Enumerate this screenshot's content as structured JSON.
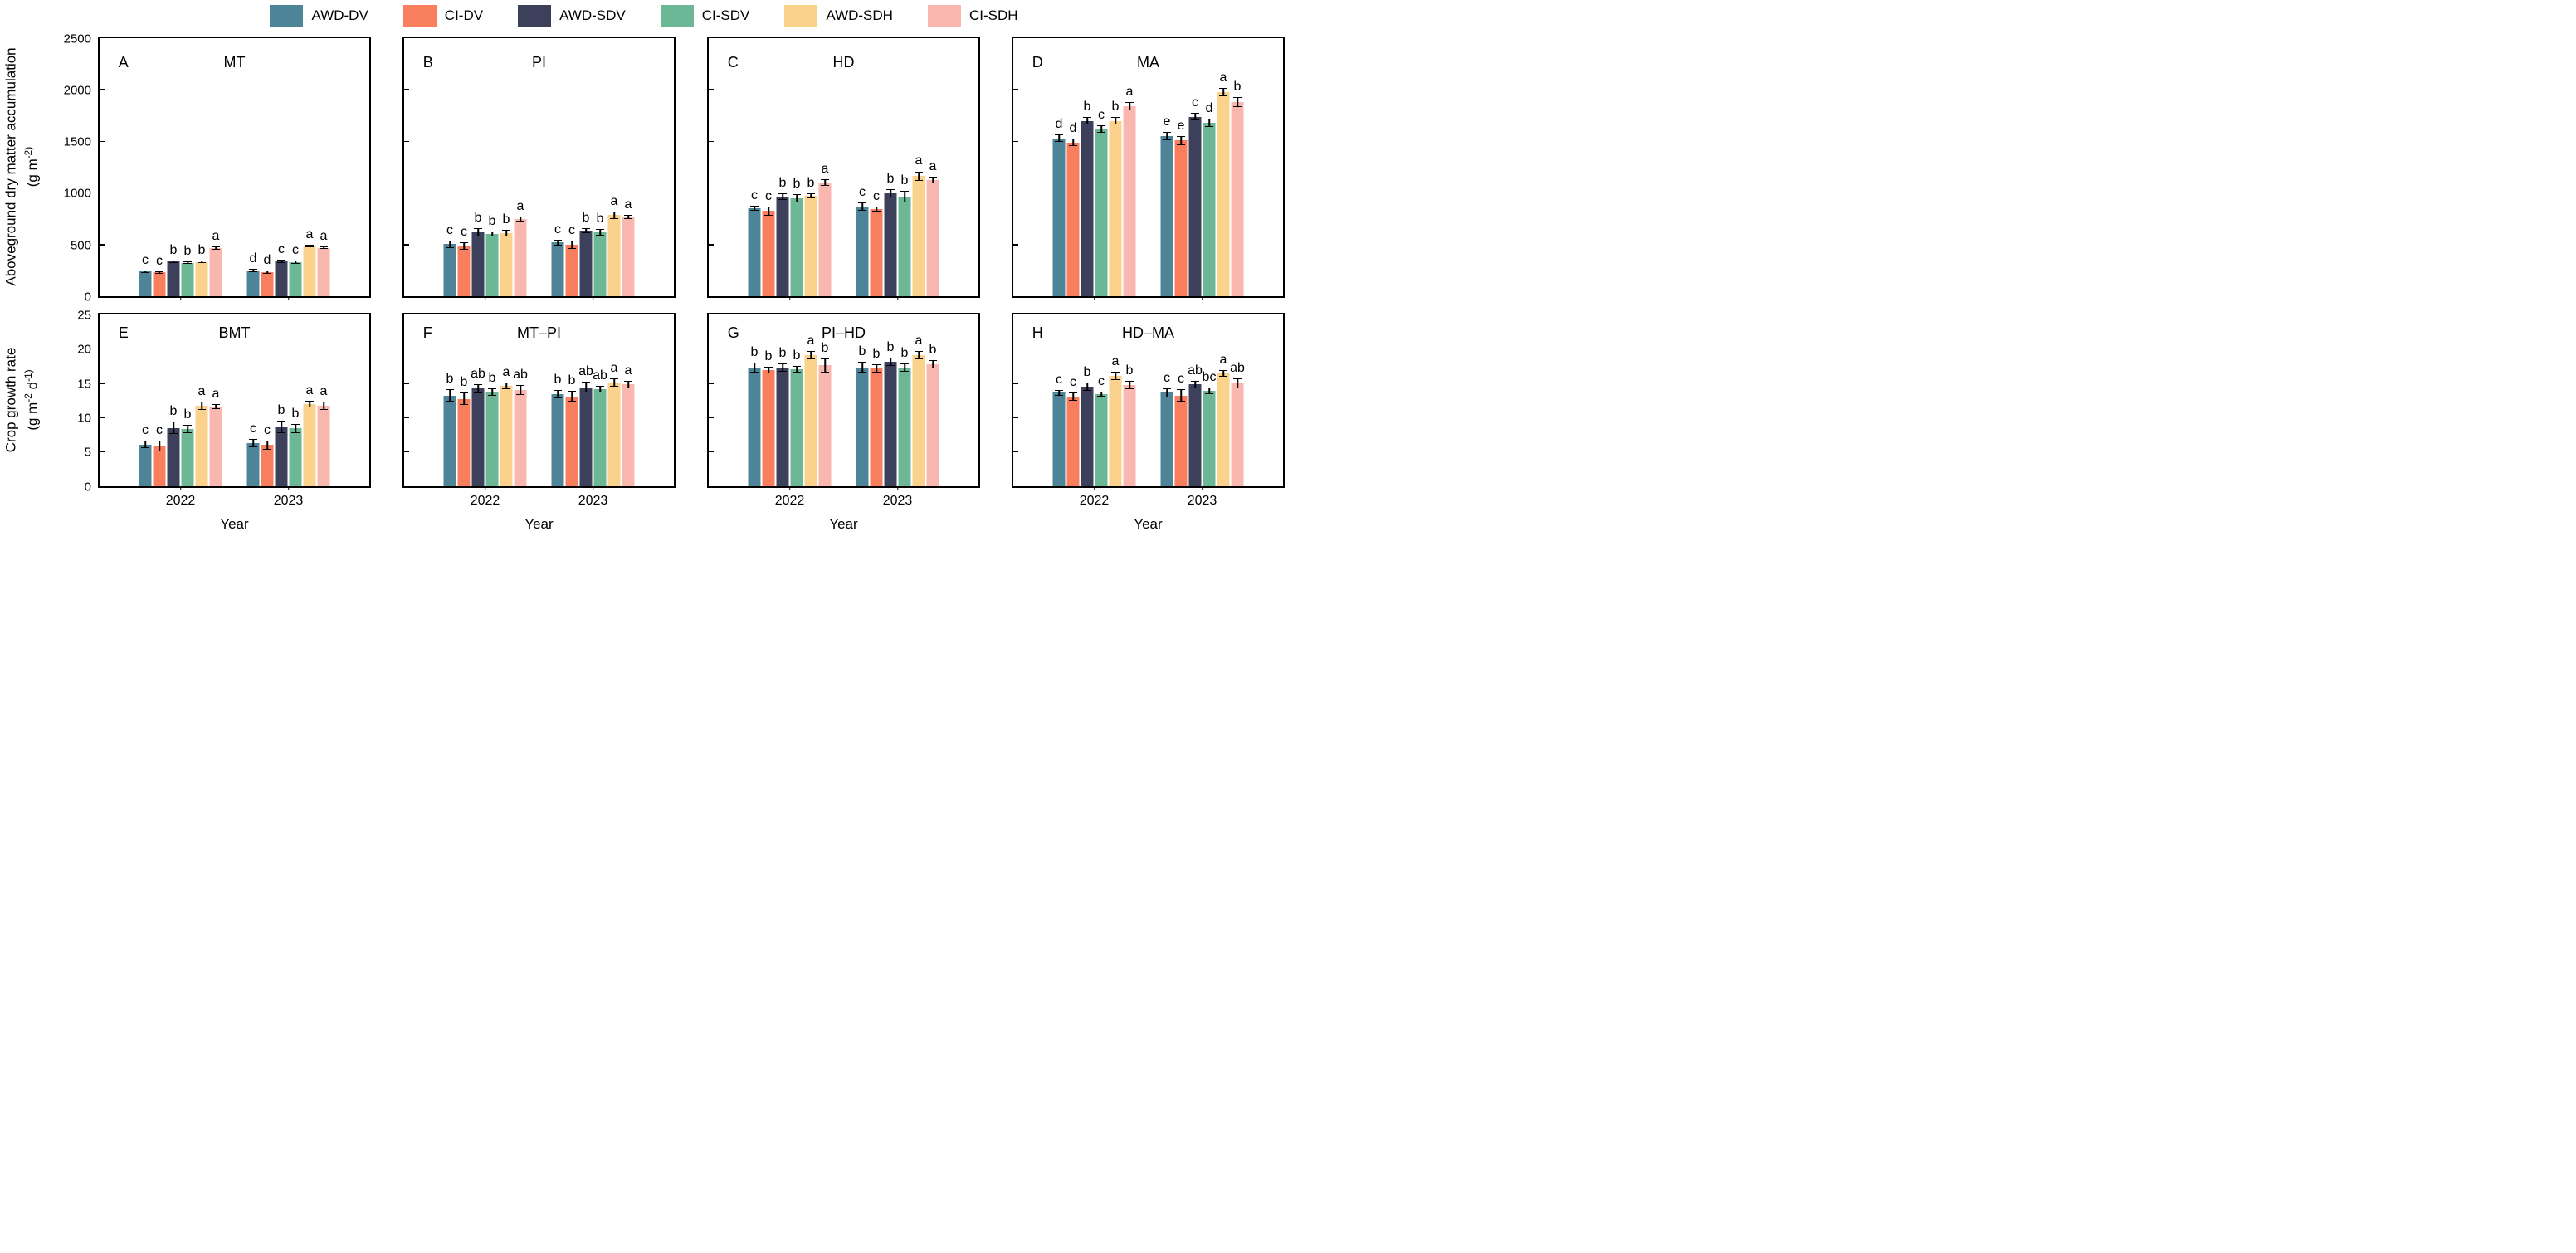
{
  "figure": {
    "x_axis_title": "Year",
    "row1_y_title": "Aboveground dry matter accumulation",
    "row1_y_units": "(g m^-2)",
    "row2_y_title": "Crop growth rate",
    "row2_y_units": "(g m^-2 d^-1)"
  },
  "legend": [
    {
      "label": "AWD-DV",
      "color": "#4D8498"
    },
    {
      "label": "CI-DV",
      "color": "#F97E5D"
    },
    {
      "label": "AWD-SDV",
      "color": "#3D405A"
    },
    {
      "label": "CI-SDV",
      "color": "#6CB795"
    },
    {
      "label": "AWD-SDH",
      "color": "#FBD28C"
    },
    {
      "label": "CI-SDH",
      "color": "#FAB7AF"
    }
  ],
  "chart_data": {
    "type": "bar",
    "categories": [
      "2022",
      "2023"
    ],
    "series_names": [
      "AWD-DV",
      "CI-DV",
      "AWD-SDV",
      "CI-SDV",
      "AWD-SDH",
      "CI-SDH"
    ],
    "grid": false,
    "legend_position": "top-center",
    "error_bars": true,
    "panels": [
      {
        "id": "A",
        "title": "MT",
        "row": 1,
        "ylim": [
          0,
          2500
        ],
        "yticks": [
          0,
          500,
          1000,
          1500,
          2000,
          2500
        ],
        "show_ytick_labels": true,
        "show_xtick_labels": false,
        "series": [
          {
            "name": "AWD-DV",
            "values": [
              240,
              250
            ],
            "errors": [
              12,
              15
            ],
            "letters": [
              "c",
              "d"
            ]
          },
          {
            "name": "CI-DV",
            "values": [
              230,
              235
            ],
            "errors": [
              15,
              15
            ],
            "letters": [
              "c",
              "d"
            ]
          },
          {
            "name": "AWD-SDV",
            "values": [
              335,
              340
            ],
            "errors": [
              12,
              15
            ],
            "letters": [
              "b",
              "c"
            ]
          },
          {
            "name": "CI-SDV",
            "values": [
              325,
              330
            ],
            "errors": [
              12,
              15
            ],
            "letters": [
              "b",
              "c"
            ]
          },
          {
            "name": "AWD-SDH",
            "values": [
              330,
              483
            ],
            "errors": [
              12,
              12
            ],
            "letters": [
              "b",
              "a"
            ]
          },
          {
            "name": "CI-SDH",
            "values": [
              465,
              470
            ],
            "errors": [
              14,
              14
            ],
            "letters": [
              "a",
              "a"
            ]
          }
        ]
      },
      {
        "id": "B",
        "title": "PI",
        "row": 1,
        "ylim": [
          0,
          2500
        ],
        "yticks": [
          0,
          500,
          1000,
          1500,
          2000,
          2500
        ],
        "show_ytick_labels": false,
        "show_xtick_labels": false,
        "series": [
          {
            "name": "AWD-DV",
            "values": [
              505,
              520
            ],
            "errors": [
              35,
              30
            ],
            "letters": [
              "c",
              "c"
            ]
          },
          {
            "name": "CI-DV",
            "values": [
              485,
              500
            ],
            "errors": [
              35,
              40
            ],
            "letters": [
              "c",
              "c"
            ]
          },
          {
            "name": "AWD-SDV",
            "values": [
              620,
              635
            ],
            "errors": [
              40,
              25
            ],
            "letters": [
              "b",
              "b"
            ]
          },
          {
            "name": "CI-SDV",
            "values": [
              600,
              620
            ],
            "errors": [
              25,
              35
            ],
            "letters": [
              "b",
              "b"
            ]
          },
          {
            "name": "AWD-SDH",
            "values": [
              610,
              785
            ],
            "errors": [
              35,
              35
            ],
            "letters": [
              "b",
              "a"
            ]
          },
          {
            "name": "CI-SDH",
            "values": [
              745,
              765
            ],
            "errors": [
              25,
              20
            ],
            "letters": [
              "a",
              "a"
            ]
          }
        ]
      },
      {
        "id": "C",
        "title": "HD",
        "row": 1,
        "ylim": [
          0,
          2500
        ],
        "yticks": [
          0,
          500,
          1000,
          1500,
          2000,
          2500
        ],
        "show_ytick_labels": false,
        "show_xtick_labels": false,
        "series": [
          {
            "name": "AWD-DV",
            "values": [
              850,
              870
            ],
            "errors": [
              25,
              40
            ],
            "letters": [
              "c",
              "c"
            ]
          },
          {
            "name": "CI-DV",
            "values": [
              825,
              845
            ],
            "errors": [
              45,
              25
            ],
            "letters": [
              "c",
              "c"
            ]
          },
          {
            "name": "AWD-SDV",
            "values": [
              965,
              1000
            ],
            "errors": [
              30,
              40
            ],
            "letters": [
              "b",
              "b"
            ]
          },
          {
            "name": "CI-SDV",
            "values": [
              945,
              965
            ],
            "errors": [
              40,
              55
            ],
            "letters": [
              "b",
              "b"
            ]
          },
          {
            "name": "AWD-SDH",
            "values": [
              970,
              1165
            ],
            "errors": [
              25,
              45
            ],
            "letters": [
              "b",
              "a"
            ]
          },
          {
            "name": "CI-SDH",
            "values": [
              1100,
              1125
            ],
            "errors": [
              30,
              35
            ],
            "letters": [
              "a",
              "a"
            ]
          }
        ]
      },
      {
        "id": "D",
        "title": "MA",
        "row": 1,
        "ylim": [
          0,
          2500
        ],
        "yticks": [
          0,
          500,
          1000,
          1500,
          2000,
          2500
        ],
        "show_ytick_labels": false,
        "show_xtick_labels": false,
        "series": [
          {
            "name": "AWD-DV",
            "values": [
              1530,
              1550
            ],
            "errors": [
              35,
              40
            ],
            "letters": [
              "d",
              "e"
            ]
          },
          {
            "name": "CI-DV",
            "values": [
              1490,
              1510
            ],
            "errors": [
              35,
              45
            ],
            "letters": [
              "d",
              "e"
            ]
          },
          {
            "name": "AWD-SDV",
            "values": [
              1700,
              1740
            ],
            "errors": [
              35,
              35
            ],
            "letters": [
              "b",
              "c"
            ]
          },
          {
            "name": "CI-SDV",
            "values": [
              1620,
              1680
            ],
            "errors": [
              35,
              40
            ],
            "letters": [
              "c",
              "d"
            ]
          },
          {
            "name": "AWD-SDH",
            "values": [
              1700,
              1980
            ],
            "errors": [
              35,
              40
            ],
            "letters": [
              "b",
              "a"
            ]
          },
          {
            "name": "CI-SDH",
            "values": [
              1840,
              1880
            ],
            "errors": [
              40,
              50
            ],
            "letters": [
              "a",
              "b"
            ]
          }
        ]
      },
      {
        "id": "E",
        "title": "BMT",
        "row": 2,
        "ylim": [
          0,
          25
        ],
        "yticks": [
          0,
          5,
          10,
          15,
          20,
          25
        ],
        "show_ytick_labels": true,
        "show_xtick_labels": true,
        "series": [
          {
            "name": "AWD-DV",
            "values": [
              6.1,
              6.3
            ],
            "errors": [
              0.5,
              0.6
            ],
            "letters": [
              "c",
              "c"
            ]
          },
          {
            "name": "CI-DV",
            "values": [
              5.9,
              6.0
            ],
            "errors": [
              0.8,
              0.7
            ],
            "letters": [
              "c",
              "c"
            ]
          },
          {
            "name": "AWD-SDV",
            "values": [
              8.5,
              8.6
            ],
            "errors": [
              0.9,
              0.9
            ],
            "letters": [
              "b",
              "b"
            ]
          },
          {
            "name": "CI-SDV",
            "values": [
              8.3,
              8.4
            ],
            "errors": [
              0.6,
              0.7
            ],
            "letters": [
              "b",
              "b"
            ]
          },
          {
            "name": "AWD-SDH",
            "values": [
              11.7,
              12.0
            ],
            "errors": [
              0.6,
              0.5
            ],
            "letters": [
              "a",
              "a"
            ]
          },
          {
            "name": "CI-SDH",
            "values": [
              11.6,
              11.7
            ],
            "errors": [
              0.4,
              0.6
            ],
            "letters": [
              "a",
              "a"
            ]
          }
        ]
      },
      {
        "id": "F",
        "title": "MT–PI",
        "row": 2,
        "ylim": [
          0,
          25
        ],
        "yticks": [
          0,
          5,
          10,
          15,
          20,
          25
        ],
        "show_ytick_labels": false,
        "show_xtick_labels": true,
        "series": [
          {
            "name": "AWD-DV",
            "values": [
              13.2,
              13.4
            ],
            "errors": [
              0.9,
              0.6
            ],
            "letters": [
              "b",
              "b"
            ]
          },
          {
            "name": "CI-DV",
            "values": [
              12.7,
              13.1
            ],
            "errors": [
              0.9,
              0.8
            ],
            "letters": [
              "b",
              "b"
            ]
          },
          {
            "name": "AWD-SDV",
            "values": [
              14.2,
              14.4
            ],
            "errors": [
              0.7,
              0.8
            ],
            "letters": [
              "ab",
              "ab"
            ]
          },
          {
            "name": "CI-SDV",
            "values": [
              13.7,
              14.1
            ],
            "errors": [
              0.5,
              0.5
            ],
            "letters": [
              "b",
              "ab"
            ]
          },
          {
            "name": "AWD-SDH",
            "values": [
              14.6,
              15.1
            ],
            "errors": [
              0.5,
              0.6
            ],
            "letters": [
              "a",
              "a"
            ]
          },
          {
            "name": "CI-SDH",
            "values": [
              14.0,
              14.8
            ],
            "errors": [
              0.7,
              0.5
            ],
            "letters": [
              "ab",
              "a"
            ]
          }
        ]
      },
      {
        "id": "G",
        "title": "PI–HD",
        "row": 2,
        "ylim": [
          0,
          25
        ],
        "yticks": [
          0,
          5,
          10,
          15,
          20,
          25
        ],
        "show_ytick_labels": false,
        "show_xtick_labels": true,
        "series": [
          {
            "name": "AWD-DV",
            "values": [
              17.3,
              17.3
            ],
            "errors": [
              0.7,
              0.8
            ],
            "letters": [
              "b",
              "b"
            ]
          },
          {
            "name": "CI-DV",
            "values": [
              16.9,
              17.1
            ],
            "errors": [
              0.5,
              0.6
            ],
            "letters": [
              "b",
              "b"
            ]
          },
          {
            "name": "AWD-SDV",
            "values": [
              17.3,
              18.1
            ],
            "errors": [
              0.6,
              0.6
            ],
            "letters": [
              "b",
              "b"
            ]
          },
          {
            "name": "CI-SDV",
            "values": [
              17.0,
              17.3
            ],
            "errors": [
              0.5,
              0.6
            ],
            "letters": [
              "b",
              "b"
            ]
          },
          {
            "name": "AWD-SDH",
            "values": [
              19.1,
              19.1
            ],
            "errors": [
              0.6,
              0.6
            ],
            "letters": [
              "a",
              "a"
            ]
          },
          {
            "name": "CI-SDH",
            "values": [
              17.6,
              17.8
            ],
            "errors": [
              1.0,
              0.6
            ],
            "letters": [
              "b",
              "b"
            ]
          }
        ]
      },
      {
        "id": "H",
        "title": "HD–MA",
        "row": 2,
        "ylim": [
          0,
          25
        ],
        "yticks": [
          0,
          5,
          10,
          15,
          20,
          25
        ],
        "show_ytick_labels": false,
        "show_xtick_labels": true,
        "series": [
          {
            "name": "AWD-DV",
            "values": [
              13.6,
              13.6
            ],
            "errors": [
              0.4,
              0.7
            ],
            "letters": [
              "c",
              "c"
            ]
          },
          {
            "name": "CI-DV",
            "values": [
              13.0,
              13.2
            ],
            "errors": [
              0.6,
              0.9
            ],
            "letters": [
              "c",
              "c"
            ]
          },
          {
            "name": "AWD-SDV",
            "values": [
              14.5,
              14.8
            ],
            "errors": [
              0.6,
              0.6
            ],
            "letters": [
              "b",
              "ab"
            ]
          },
          {
            "name": "CI-SDV",
            "values": [
              13.4,
              13.9
            ],
            "errors": [
              0.4,
              0.5
            ],
            "letters": [
              "c",
              "bc"
            ]
          },
          {
            "name": "AWD-SDH",
            "values": [
              16.1,
              16.4
            ],
            "errors": [
              0.6,
              0.5
            ],
            "letters": [
              "a",
              "a"
            ]
          },
          {
            "name": "CI-SDH",
            "values": [
              14.7,
              15.0
            ],
            "errors": [
              0.6,
              0.7
            ],
            "letters": [
              "b",
              "ab"
            ]
          }
        ]
      }
    ]
  }
}
